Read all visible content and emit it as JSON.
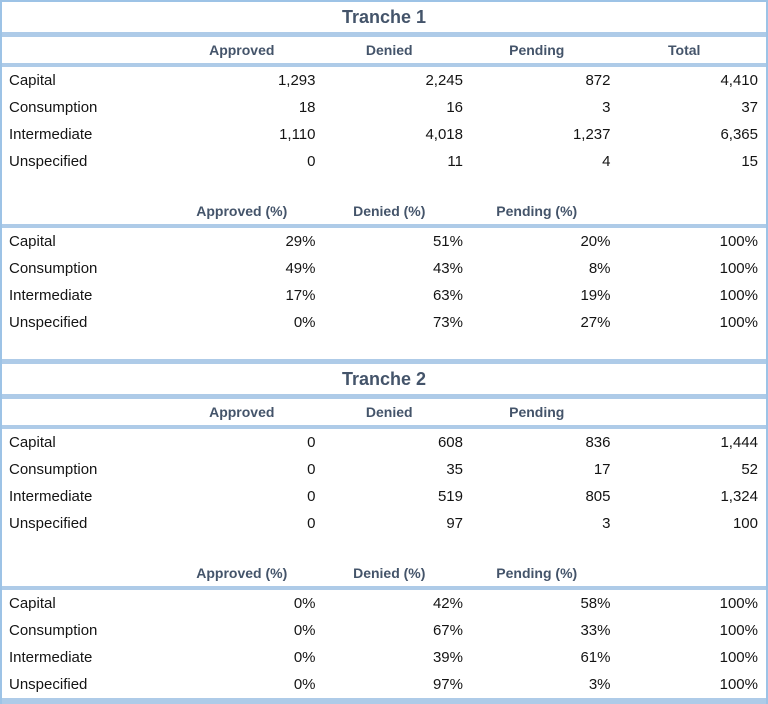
{
  "colors": {
    "border_blue": "#9DC3E6",
    "band_blue": "#AECBE8",
    "header_text": "#44546A",
    "body_text": "#141414",
    "background": "#FFFFFF"
  },
  "tranche1": {
    "title": "Tranche 1",
    "counts": {
      "headers": [
        "Approved",
        "Denied",
        "Pending",
        "Total"
      ],
      "rows": [
        {
          "label": "Capital",
          "values": [
            "1,293",
            "2,245",
            "872",
            "4,410"
          ]
        },
        {
          "label": "Consumption",
          "values": [
            "18",
            "16",
            "3",
            "37"
          ]
        },
        {
          "label": "Intermediate",
          "values": [
            "1,110",
            "4,018",
            "1,237",
            "6,365"
          ]
        },
        {
          "label": "Unspecified",
          "values": [
            "0",
            "11",
            "4",
            "15"
          ]
        }
      ]
    },
    "percentages": {
      "headers": [
        "Approved (%)",
        "Denied (%)",
        "Pending (%)",
        ""
      ],
      "rows": [
        {
          "label": "Capital",
          "values": [
            "29%",
            "51%",
            "20%",
            "100%"
          ]
        },
        {
          "label": "Consumption",
          "values": [
            "49%",
            "43%",
            "8%",
            "100%"
          ]
        },
        {
          "label": "Intermediate",
          "values": [
            "17%",
            "63%",
            "19%",
            "100%"
          ]
        },
        {
          "label": "Unspecified",
          "values": [
            "0%",
            "73%",
            "27%",
            "100%"
          ]
        }
      ]
    }
  },
  "tranche2": {
    "title": "Tranche 2",
    "counts": {
      "headers": [
        "Approved",
        "Denied",
        "Pending",
        ""
      ],
      "rows": [
        {
          "label": "Capital",
          "values": [
            "0",
            "608",
            "836",
            "1,444"
          ]
        },
        {
          "label": "Consumption",
          "values": [
            "0",
            "35",
            "17",
            "52"
          ]
        },
        {
          "label": "Intermediate",
          "values": [
            "0",
            "519",
            "805",
            "1,324"
          ]
        },
        {
          "label": "Unspecified",
          "values": [
            "0",
            "97",
            "3",
            "100"
          ]
        }
      ]
    },
    "percentages": {
      "headers": [
        "Approved (%)",
        "Denied (%)",
        "Pending (%)",
        ""
      ],
      "rows": [
        {
          "label": "Capital",
          "values": [
            "0%",
            "42%",
            "58%",
            "100%"
          ]
        },
        {
          "label": "Consumption",
          "values": [
            "0%",
            "67%",
            "33%",
            "100%"
          ]
        },
        {
          "label": "Intermediate",
          "values": [
            "0%",
            "39%",
            "61%",
            "100%"
          ]
        },
        {
          "label": "Unspecified",
          "values": [
            "0%",
            "97%",
            "3%",
            "100%"
          ]
        }
      ]
    }
  },
  "chart_data": [
    {
      "type": "table",
      "title": "Tranche 1",
      "columns": [
        "",
        "Approved",
        "Denied",
        "Pending",
        "Total"
      ],
      "rows": [
        [
          "Capital",
          1293,
          2245,
          872,
          4410
        ],
        [
          "Consumption",
          18,
          16,
          3,
          37
        ],
        [
          "Intermediate",
          1110,
          4018,
          1237,
          6365
        ],
        [
          "Unspecified",
          0,
          11,
          4,
          15
        ]
      ]
    },
    {
      "type": "table",
      "title": "Tranche 1",
      "columns": [
        "",
        "Approved (%)",
        "Denied (%)",
        "Pending (%)",
        ""
      ],
      "rows": [
        [
          "Capital",
          "29%",
          "51%",
          "20%",
          "100%"
        ],
        [
          "Consumption",
          "49%",
          "43%",
          "8%",
          "100%"
        ],
        [
          "Intermediate",
          "17%",
          "63%",
          "19%",
          "100%"
        ],
        [
          "Unspecified",
          "0%",
          "73%",
          "27%",
          "100%"
        ]
      ]
    },
    {
      "type": "table",
      "title": "Tranche 2",
      "columns": [
        "",
        "Approved",
        "Denied",
        "Pending",
        ""
      ],
      "rows": [
        [
          "Capital",
          0,
          608,
          836,
          1444
        ],
        [
          "Consumption",
          0,
          35,
          17,
          52
        ],
        [
          "Intermediate",
          0,
          519,
          805,
          1324
        ],
        [
          "Unspecified",
          0,
          97,
          3,
          100
        ]
      ]
    },
    {
      "type": "table",
      "title": "Tranche 2",
      "columns": [
        "",
        "Approved (%)",
        "Denied (%)",
        "Pending (%)",
        ""
      ],
      "rows": [
        [
          "Capital",
          "0%",
          "42%",
          "58%",
          "100%"
        ],
        [
          "Consumption",
          "0%",
          "67%",
          "33%",
          "100%"
        ],
        [
          "Intermediate",
          "0%",
          "39%",
          "61%",
          "100%"
        ],
        [
          "Unspecified",
          "0%",
          "97%",
          "3%",
          "100%"
        ]
      ]
    }
  ]
}
